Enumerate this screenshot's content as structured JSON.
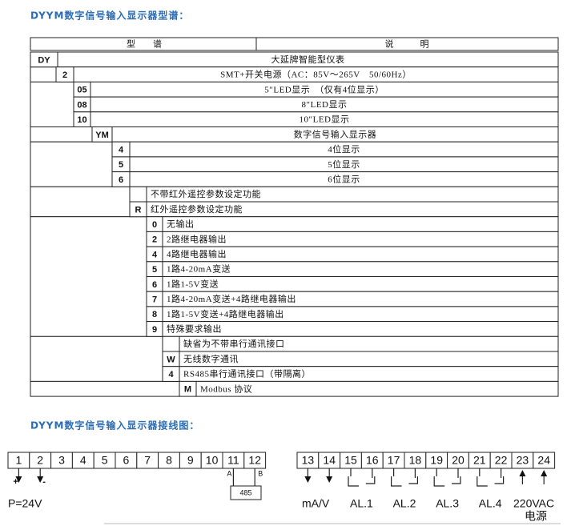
{
  "title": "DYYM数字信号输入显示器型谱：",
  "table": {
    "header": [
      "型　　谱",
      "说　　　明"
    ],
    "rows": [
      {
        "code": "DY",
        "desc": "大延牌智能型仪表"
      },
      {
        "code": "2",
        "desc": "SMT+开关电源（AC：85V～265V　50/60Hz）"
      },
      {
        "code": "05",
        "desc": "5″LED显示　（仅有4位显示）"
      },
      {
        "code": "08",
        "desc": "8″LED显示"
      },
      {
        "code": "10",
        "desc": "10″LED显示"
      },
      {
        "code": "YM",
        "desc": "数字信号输入显示器"
      },
      {
        "code": "4",
        "desc": "4位显示"
      },
      {
        "code": "5",
        "desc": "5位显示"
      },
      {
        "code": "6",
        "desc": "6位显示"
      },
      {
        "code": null,
        "desc": "不带红外遥控参数设定功能"
      },
      {
        "code": "R",
        "desc": "红外遥控参数设定功能"
      },
      {
        "code": "0",
        "desc": "无输出"
      },
      {
        "code": "2",
        "desc": "2路继电器输出"
      },
      {
        "code": "4",
        "desc": "4路继电器输出"
      },
      {
        "code": "5",
        "desc": "1路4-20mA变送"
      },
      {
        "code": "6",
        "desc": "1路1-5V变送"
      },
      {
        "code": "7",
        "desc": "1路4-20mA变送+4路继电器输出"
      },
      {
        "code": "8",
        "desc": "1路1-5V变送+4路继电器输出"
      },
      {
        "code": "9",
        "desc": "特殊要求输出"
      },
      {
        "code": null,
        "desc": "缺省为不带串行通讯接口"
      },
      {
        "code": "W",
        "desc": "无线数字通讯"
      },
      {
        "code": "4",
        "desc": "RS485串行通讯接口（带隔离）"
      },
      {
        "code": "M",
        "desc": "Modbus 协议"
      }
    ]
  },
  "wiring": {
    "title": "DYYM数字信号输入显示器接线图：",
    "terminals": [
      "1",
      "2",
      "3",
      "4",
      "5",
      "6",
      "7",
      "8",
      "9",
      "10",
      "11",
      "12",
      "13",
      "14",
      "15",
      "16",
      "17",
      "18",
      "19",
      "20",
      "21",
      "22",
      "23",
      "24"
    ],
    "power": {
      "plus": "+",
      "minus": "-",
      "label": "P=24V"
    },
    "rs485": {
      "a": "A",
      "b": "B",
      "label": "485"
    },
    "input_label": "mA/V",
    "alarms": [
      "AL.1",
      "AL.2",
      "AL.3",
      "AL.4"
    ],
    "supply": [
      "220VAC",
      "电源"
    ]
  }
}
